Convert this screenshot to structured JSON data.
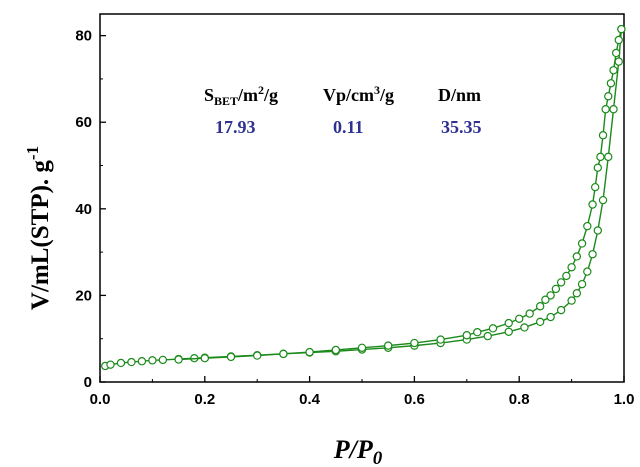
{
  "chart_data": {
    "type": "line",
    "title": "",
    "xlabel": "P/P0",
    "ylabel": "V/mL(STP). g-1",
    "xlim": [
      0.0,
      1.0
    ],
    "ylim": [
      0,
      85
    ],
    "xticks": [
      "0.0",
      "0.2",
      "0.4",
      "0.6",
      "0.8",
      "1.0"
    ],
    "yticks": [
      "0",
      "20",
      "40",
      "60",
      "80"
    ],
    "grid": false,
    "legend": "none",
    "series_color": "#1a8a1a",
    "series": [
      {
        "name": "",
        "x": [
          0.01,
          0.02,
          0.04,
          0.06,
          0.08,
          0.1,
          0.12,
          0.15,
          0.18,
          0.2,
          0.25,
          0.3,
          0.35,
          0.4,
          0.45,
          0.5,
          0.55,
          0.6,
          0.65,
          0.7,
          0.74,
          0.78,
          0.81,
          0.84,
          0.86,
          0.88,
          0.9,
          0.91,
          0.92,
          0.93,
          0.94,
          0.95,
          0.96,
          0.97,
          0.98,
          0.99,
          0.995
        ],
        "y": [
          3.7,
          4.0,
          4.4,
          4.6,
          4.8,
          5.0,
          5.1,
          5.3,
          5.5,
          5.6,
          5.9,
          6.2,
          6.5,
          6.8,
          7.1,
          7.5,
          7.9,
          8.4,
          9.0,
          9.8,
          10.6,
          11.6,
          12.6,
          13.9,
          15.0,
          16.6,
          18.8,
          20.5,
          22.6,
          25.5,
          29.5,
          35.0,
          42.0,
          52.0,
          63.0,
          74.0,
          81.5
        ]
      },
      {
        "name": "",
        "x": [
          0.995,
          0.99,
          0.985,
          0.98,
          0.975,
          0.97,
          0.965,
          0.96,
          0.955,
          0.95,
          0.945,
          0.94,
          0.93,
          0.92,
          0.91,
          0.9,
          0.89,
          0.88,
          0.87,
          0.86,
          0.85,
          0.84,
          0.82,
          0.8,
          0.78,
          0.75,
          0.72,
          0.7,
          0.65,
          0.6,
          0.55,
          0.5,
          0.45,
          0.4,
          0.35,
          0.3,
          0.25,
          0.2,
          0.15
        ],
        "y": [
          81.5,
          79.0,
          76.0,
          72.0,
          69.0,
          66.0,
          63.0,
          57.0,
          52.0,
          49.5,
          45.0,
          41.0,
          36.0,
          32.0,
          29.0,
          26.5,
          24.5,
          23.0,
          21.5,
          20.0,
          19.0,
          17.5,
          15.8,
          14.6,
          13.6,
          12.4,
          11.5,
          10.8,
          9.8,
          9.0,
          8.4,
          7.9,
          7.4,
          6.9,
          6.5,
          6.1,
          5.8,
          5.5,
          5.2
        ]
      }
    ],
    "annotations": {
      "sbet_label_main": "S",
      "sbet_label_sub": "BET",
      "sbet_label_unit": "/m",
      "sbet_label_sup": "2",
      "sbet_label_tail": "/g",
      "vp_label_main": "Vp/cm",
      "vp_label_sup": "3",
      "vp_label_tail": "/g",
      "d_label": "D/nm",
      "sbet_value": "17.93",
      "vp_value": "0.11",
      "d_value": "35.35"
    },
    "ylabel_main": "V/mL(STP). g",
    "ylabel_sup": "-1",
    "xlabel_p": "P/P",
    "xlabel_sub": "0"
  }
}
